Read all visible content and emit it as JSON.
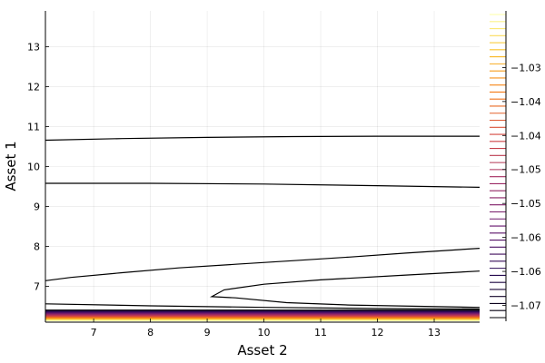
{
  "chart_data": {
    "type": "contour",
    "xlabel": "Asset 2",
    "ylabel": "Asset 1",
    "xlim": [
      6.15,
      13.8
    ],
    "ylim": [
      6.1,
      13.9
    ],
    "xticks": [
      7,
      8,
      9,
      10,
      11,
      12,
      13
    ],
    "yticks": [
      7,
      8,
      9,
      10,
      11,
      12,
      13
    ],
    "grid": true,
    "colorbar": {
      "colormap": "inferno",
      "range": [
        -1.0718,
        -1.0272
      ],
      "tick_values": [
        -1.07,
        -1.065,
        -1.06,
        -1.055,
        -1.05,
        -1.045,
        -1.04,
        -1.035
      ],
      "tick_labels": [
        "−1.07",
        "−1.06",
        "−1.06",
        "−1.05",
        "−1.05",
        "−1.04",
        "−1.04",
        "−1.03"
      ]
    },
    "contour_lines": [
      {
        "points": [
          [
            6.15,
            10.66
          ],
          [
            7.5,
            10.7
          ],
          [
            9.0,
            10.73
          ],
          [
            10.5,
            10.75
          ],
          [
            12.0,
            10.76
          ],
          [
            13.8,
            10.76
          ]
        ]
      },
      {
        "points": [
          [
            6.15,
            9.58
          ],
          [
            8.0,
            9.58
          ],
          [
            10.0,
            9.56
          ],
          [
            12.0,
            9.52
          ],
          [
            13.8,
            9.48
          ]
        ]
      },
      {
        "points": [
          [
            6.15,
            7.14
          ],
          [
            6.6,
            7.22
          ],
          [
            7.5,
            7.34
          ],
          [
            8.5,
            7.46
          ],
          [
            9.5,
            7.55
          ],
          [
            10.5,
            7.64
          ],
          [
            11.5,
            7.73
          ],
          [
            12.5,
            7.83
          ],
          [
            13.8,
            7.95
          ]
        ]
      },
      {
        "points": [
          [
            13.8,
            7.38
          ],
          [
            12.5,
            7.28
          ],
          [
            11.0,
            7.16
          ],
          [
            10.0,
            7.05
          ],
          [
            9.3,
            6.91
          ],
          [
            9.08,
            6.74
          ],
          [
            9.5,
            6.71
          ],
          [
            10.4,
            6.59
          ],
          [
            11.5,
            6.53
          ],
          [
            13.8,
            6.47
          ]
        ]
      },
      {
        "points": [
          [
            6.15,
            6.56
          ],
          [
            8.0,
            6.51
          ],
          [
            10.0,
            6.47
          ],
          [
            12.0,
            6.44
          ],
          [
            13.8,
            6.43
          ]
        ]
      }
    ],
    "bottom_band_levels": 14
  }
}
